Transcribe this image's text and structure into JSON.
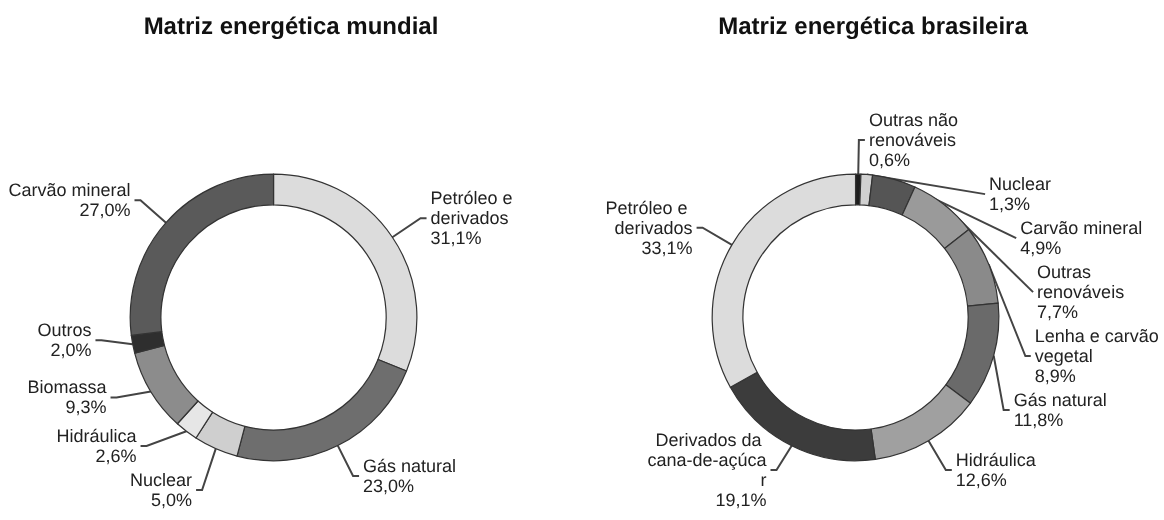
{
  "chart_data": [
    {
      "type": "donut",
      "title": "Matriz energética mundial",
      "categories": [
        "Petróleo e derivados",
        "Gás natural",
        "Nuclear",
        "Hidráulica",
        "Biomassa",
        "Outros",
        "Carvão mineral"
      ],
      "values": [
        31.1,
        23.0,
        5.0,
        2.6,
        9.3,
        2.0,
        27.0
      ],
      "value_labels": [
        "31,1%",
        "23,0%",
        "5,0%",
        "2,6%",
        "9,3%",
        "2,0%",
        "27,0%"
      ],
      "colors": [
        "#dcdcdc",
        "#6e6e6e",
        "#cfcfcf",
        "#e6e6e6",
        "#8c8c8c",
        "#2e2e2e",
        "#5a5a5a"
      ],
      "legend": false
    },
    {
      "type": "donut",
      "title": "Matriz energética brasileira",
      "categories": [
        "Outras não renováveis",
        "Nuclear",
        "Carvão mineral",
        "Outras renováveis",
        "Lenha e carvão vegetal",
        "Gás natural",
        "Hidráulica",
        "Derivados da cana-de-açúcar",
        "Petróleo e derivados"
      ],
      "values": [
        0.6,
        1.3,
        4.9,
        7.7,
        8.9,
        11.8,
        12.6,
        19.1,
        33.1
      ],
      "value_labels": [
        "0,6%",
        "1,3%",
        "4,9%",
        "7,7%",
        "8,9%",
        "11,8%",
        "12,6%",
        "19,1%",
        "33,1%"
      ],
      "colors": [
        "#1e1e1e",
        "#d0d0d0",
        "#555555",
        "#9a9a9a",
        "#8a8a8a",
        "#6a6a6a",
        "#a0a0a0",
        "#3c3c3c",
        "#dcdcdc"
      ],
      "legend": false
    }
  ]
}
